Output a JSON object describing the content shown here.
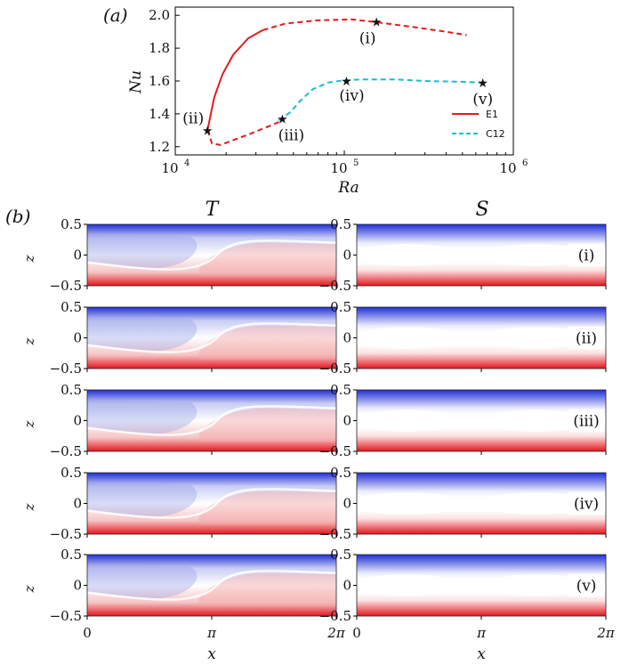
{
  "panel_a": {
    "label": "(a)",
    "chart_data": {
      "type": "line",
      "xscale": "log",
      "xlabel": "Ra",
      "ylabel": "Nu",
      "xlim": [
        10000,
        1000000
      ],
      "ylim": [
        1.15,
        2.05
      ],
      "xticks": [
        {
          "value": 10000,
          "base": "10",
          "exp": "4"
        },
        {
          "value": 100000,
          "base": "10",
          "exp": "5"
        },
        {
          "value": 1000000,
          "base": "10",
          "exp": "6"
        }
      ],
      "yticks": [
        {
          "value": 1.2,
          "label": "1.2"
        },
        {
          "value": 1.4,
          "label": "1.4"
        },
        {
          "value": 1.6,
          "label": "1.6"
        },
        {
          "value": 1.8,
          "label": "1.8"
        },
        {
          "value": 2.0,
          "label": "2.0"
        }
      ],
      "legend_position": "bottom-right",
      "series": [
        {
          "name": "E1",
          "color": "#e41a1c",
          "solid": [
            [
              15500,
              1.3
            ],
            [
              17000,
              1.5
            ],
            [
              19000,
              1.64
            ],
            [
              22000,
              1.76
            ],
            [
              27000,
              1.86
            ],
            [
              33000,
              1.91
            ]
          ],
          "dashed": [
            [
              33000,
              1.91
            ],
            [
              45000,
              1.95
            ],
            [
              70000,
              1.97
            ],
            [
              110000,
              1.975
            ],
            [
              150000,
              1.96
            ],
            [
              250000,
              1.93
            ],
            [
              400000,
              1.9
            ],
            [
              530000,
              1.88
            ]
          ],
          "lower_dashed": [
            [
              15500,
              1.3
            ],
            [
              16500,
              1.22
            ],
            [
              18500,
              1.21
            ],
            [
              22000,
              1.24
            ],
            [
              28000,
              1.28
            ],
            [
              35000,
              1.32
            ],
            [
              41000,
              1.35
            ]
          ]
        },
        {
          "name": "C12",
          "color": "#17becf",
          "dashed": [
            [
              41000,
              1.36
            ],
            [
              48000,
              1.41
            ],
            [
              55000,
              1.48
            ],
            [
              65000,
              1.55
            ],
            [
              80000,
              1.59
            ],
            [
              100000,
              1.605
            ],
            [
              130000,
              1.61
            ],
            [
              200000,
              1.61
            ],
            [
              300000,
              1.6
            ],
            [
              500000,
              1.595
            ],
            [
              650000,
              1.59
            ]
          ]
        }
      ],
      "markers": [
        {
          "label": "(i)",
          "x": 155000,
          "y": 1.96
        },
        {
          "label": "(ii)",
          "x": 15500,
          "y": 1.3
        },
        {
          "label": "(iii)",
          "x": 43000,
          "y": 1.37
        },
        {
          "label": "(iv)",
          "x": 103000,
          "y": 1.6
        },
        {
          "label": "(v)",
          "x": 660000,
          "y": 1.59
        }
      ]
    }
  },
  "panel_b": {
    "label": "(b)",
    "col_titles": [
      "T",
      "S"
    ],
    "row_labels": [
      "(i)",
      "(ii)",
      "(iii)",
      "(iv)",
      "(v)"
    ],
    "ylabel": "z",
    "xlabel": "x",
    "yticks": [
      "0.5",
      "0",
      "−0.5"
    ],
    "xticks": [
      "0",
      "π",
      "2π"
    ]
  },
  "colors": {
    "hot": "#e41a1c",
    "cold": "#1a2fd0"
  }
}
